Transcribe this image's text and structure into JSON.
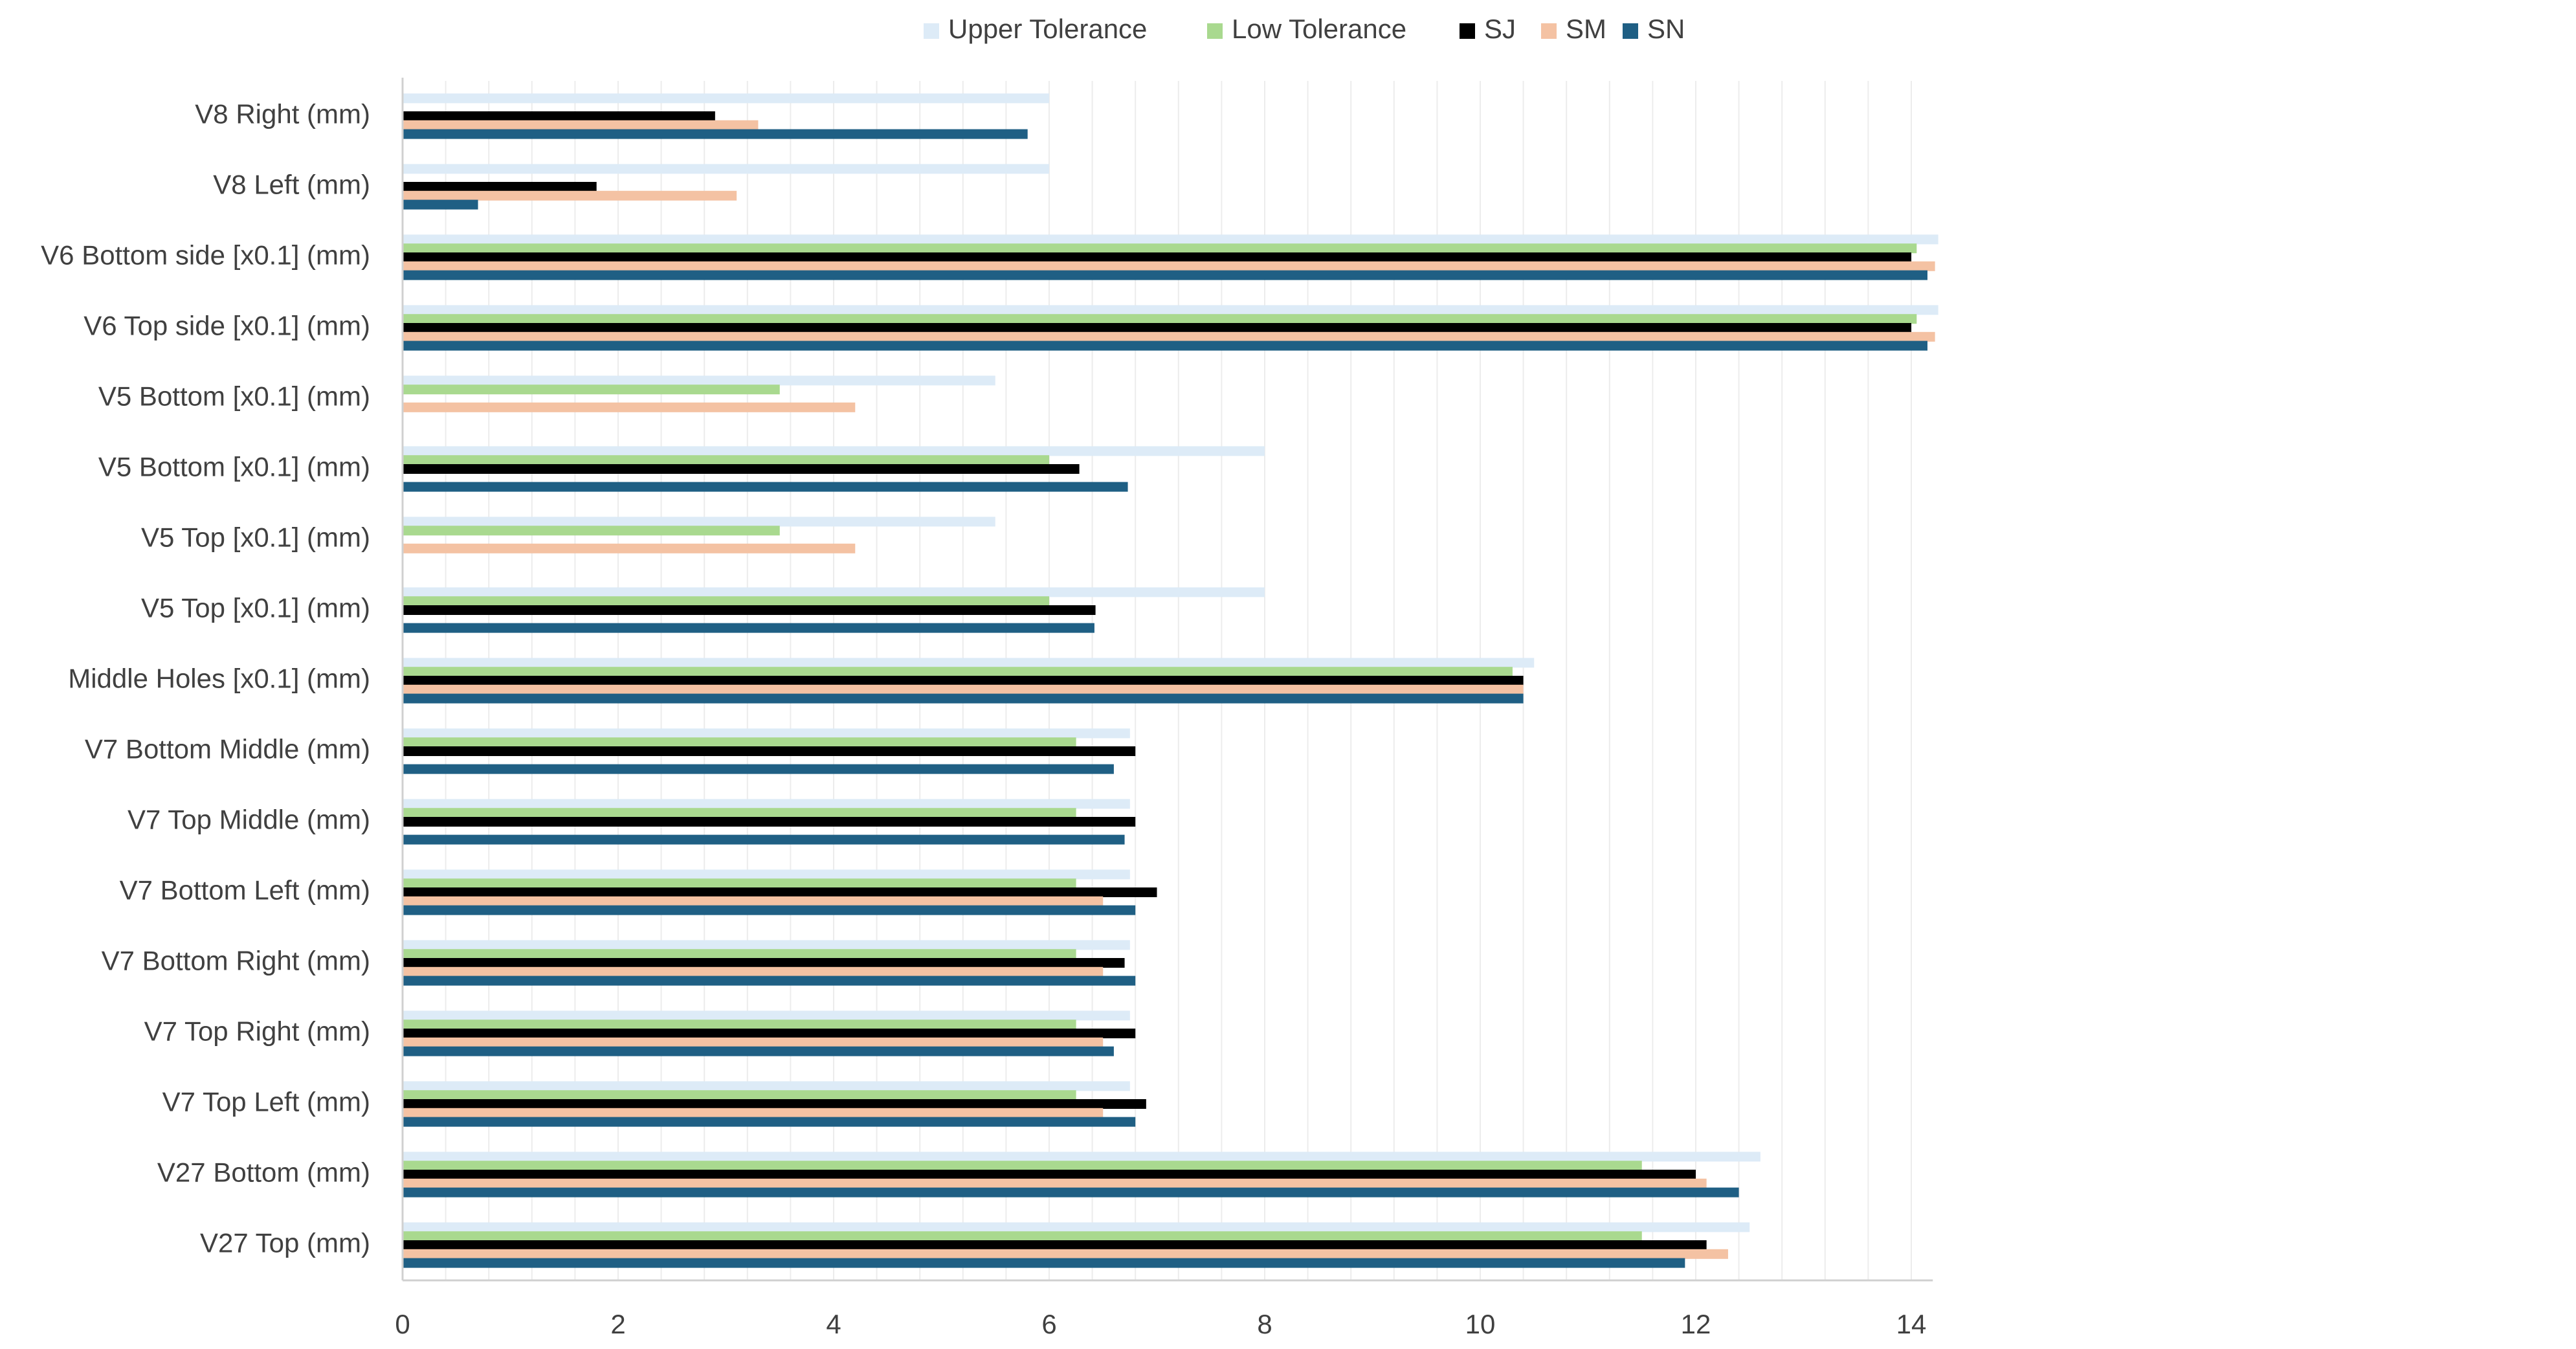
{
  "chart_data": {
    "type": "bar",
    "orientation": "horizontal",
    "title": "",
    "xlabel": "",
    "ylabel": "",
    "xlim": [
      0,
      14.2
    ],
    "x_ticks": [
      "0",
      "2",
      "4",
      "6",
      "8",
      "10",
      "12",
      "14"
    ],
    "grid": "vertical minor gridlines every 0.4",
    "legend_position": "top",
    "categories": [
      "V8 Right (mm)",
      "V8 Left (mm)",
      "V6 Bottom side [x0.1] (mm)",
      "V6 Top side [x0.1] (mm)",
      "V5 Bottom [x0.1] (mm)",
      "V5 Bottom [x0.1] (mm)",
      "V5 Top [x0.1] (mm)",
      "V5 Top [x0.1] (mm)",
      "Middle Holes [x0.1] (mm)",
      "V7 Bottom Middle (mm)",
      "V7 Top Middle (mm)",
      "V7 Bottom Left (mm)",
      "V7 Bottom Right (mm)",
      "V7 Top Right (mm)",
      "V7 Top Left (mm)",
      "V27 Bottom (mm)",
      "V27 Top (mm)"
    ],
    "series": [
      {
        "name": "Upper Tolerance",
        "color": "#DDEBF7",
        "values": [
          6,
          6,
          14.25,
          14.25,
          5.5,
          8,
          5.5,
          8,
          10.5,
          6.75,
          6.75,
          6.75,
          6.75,
          6.75,
          6.75,
          12.6,
          12.5
        ]
      },
      {
        "name": "Low Tolerance",
        "color": "#A9D98F",
        "values": [
          0,
          0,
          14.05,
          14.05,
          3.5,
          6,
          3.5,
          6,
          10.3,
          6.25,
          6.25,
          6.25,
          6.25,
          6.25,
          6.25,
          11.5,
          11.5
        ]
      },
      {
        "name": "SJ",
        "color": "#000000",
        "values": [
          2.9,
          1.8,
          14.0,
          14.0,
          0,
          6.28,
          0,
          6.43,
          10.4,
          6.8,
          6.8,
          7.0,
          6.7,
          6.8,
          6.9,
          12.0,
          12.1
        ]
      },
      {
        "name": "SM",
        "color": "#F4C2A3",
        "values": [
          3.3,
          3.1,
          14.22,
          14.22,
          4.2,
          0,
          4.2,
          0,
          10.4,
          0,
          0,
          6.5,
          6.5,
          6.5,
          6.5,
          12.1,
          12.3
        ]
      },
      {
        "name": "SN",
        "color": "#1F5F84",
        "values": [
          5.8,
          0.7,
          14.15,
          14.15,
          0,
          6.73,
          0,
          6.42,
          10.4,
          6.6,
          6.7,
          6.8,
          6.8,
          6.6,
          6.8,
          12.4,
          11.9
        ]
      }
    ]
  }
}
